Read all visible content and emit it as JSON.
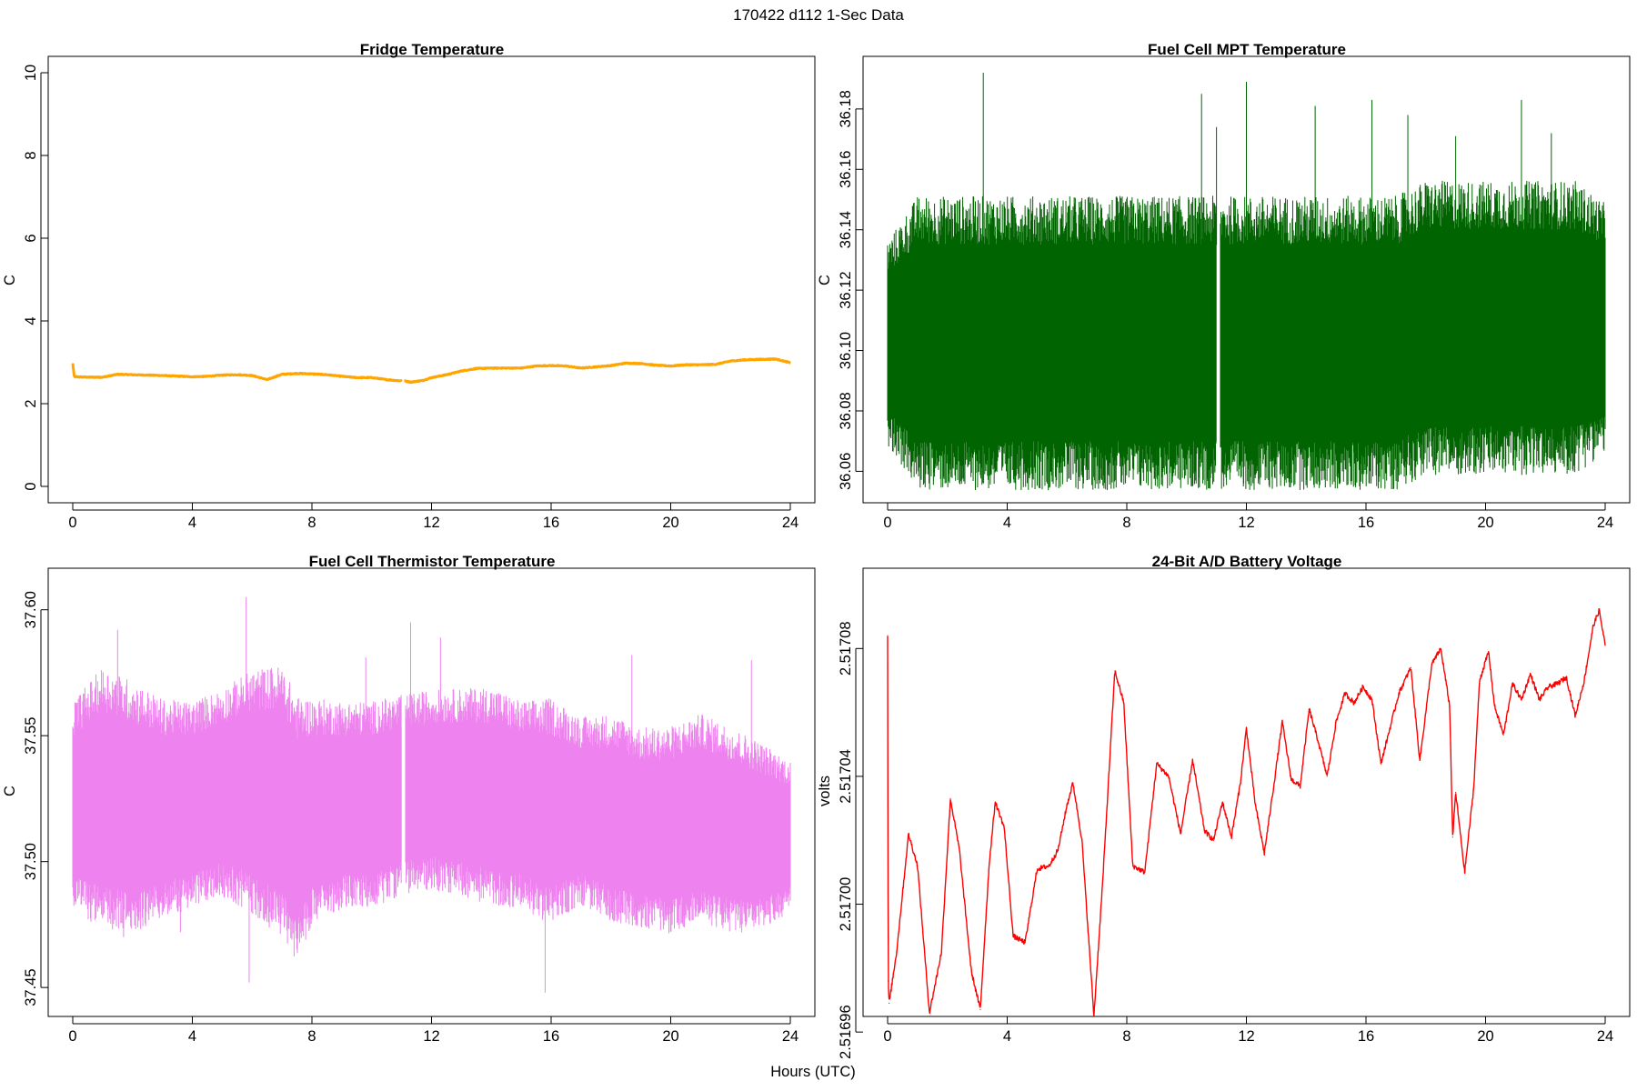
{
  "figure": {
    "title": "170422   d112   1-Sec Data",
    "shared_xlabel": "Hours (UTC)"
  },
  "chart_data": [
    {
      "type": "line",
      "title": "Fridge Temperature",
      "xlabel": "",
      "ylabel": "C",
      "xlim": [
        0,
        24
      ],
      "ylim": [
        0,
        10
      ],
      "xticks": [
        0,
        4,
        8,
        12,
        16,
        20,
        24
      ],
      "yticks": [
        0,
        2,
        4,
        6,
        8,
        10
      ],
      "ytick_labels": [
        "0",
        "2",
        "4",
        "6",
        "8",
        "10"
      ],
      "color": "#ffa500",
      "render": "smooth",
      "gap": [
        11.0,
        11.1
      ],
      "x": [
        0,
        0.05,
        0.5,
        1,
        1.5,
        2,
        3,
        4,
        4.5,
        5,
        5.5,
        6,
        6.5,
        7,
        7.5,
        8,
        8.5,
        9,
        9.5,
        10,
        10.5,
        11,
        11.1,
        11.3,
        11.7,
        12,
        12.5,
        13,
        13.5,
        14,
        15,
        15.5,
        16,
        16.5,
        17,
        17.5,
        18,
        18.5,
        19,
        19.5,
        20,
        20.5,
        21,
        21.5,
        22,
        22.5,
        23,
        23.5,
        24
      ],
      "y": [
        2.97,
        2.65,
        2.64,
        2.64,
        2.71,
        2.7,
        2.68,
        2.65,
        2.66,
        2.69,
        2.7,
        2.68,
        2.58,
        2.71,
        2.73,
        2.72,
        2.7,
        2.66,
        2.63,
        2.63,
        2.58,
        2.55,
        2.55,
        2.52,
        2.56,
        2.63,
        2.7,
        2.79,
        2.85,
        2.86,
        2.86,
        2.91,
        2.92,
        2.91,
        2.86,
        2.89,
        2.92,
        2.98,
        2.97,
        2.93,
        2.91,
        2.94,
        2.94,
        2.95,
        3.03,
        3.06,
        3.07,
        3.08,
        2.99
      ]
    },
    {
      "type": "line",
      "title": "Fuel Cell MPT Temperature",
      "xlabel": "",
      "ylabel": "C",
      "xlim": [
        0,
        24
      ],
      "ylim": [
        36.055,
        36.192
      ],
      "xticks": [
        0,
        4,
        8,
        12,
        16,
        20,
        24
      ],
      "yticks": [
        36.06,
        36.08,
        36.1,
        36.12,
        36.14,
        36.16,
        36.18
      ],
      "ytick_labels": [
        "36.06",
        "36.08",
        "36.10",
        "36.12",
        "36.14",
        "36.16",
        "36.18"
      ],
      "color": "#006400",
      "render": "noise-band",
      "gap": [
        11.0,
        11.12
      ],
      "x": [
        0,
        1,
        2,
        3,
        4,
        5,
        6,
        7,
        8,
        9,
        10,
        11,
        12,
        13,
        14,
        15,
        16,
        17,
        18,
        19,
        20,
        21,
        22,
        23,
        24
      ],
      "low": [
        36.08,
        36.07,
        36.07,
        36.07,
        36.07,
        36.07,
        36.07,
        36.07,
        36.07,
        36.07,
        36.07,
        36.07,
        36.07,
        36.07,
        36.07,
        36.07,
        36.07,
        36.07,
        36.075,
        36.075,
        36.075,
        36.075,
        36.075,
        36.075,
        36.08
      ],
      "high": [
        36.125,
        36.135,
        36.135,
        36.135,
        36.135,
        36.135,
        36.135,
        36.135,
        36.135,
        36.135,
        36.135,
        36.135,
        36.135,
        36.135,
        36.135,
        36.135,
        36.135,
        36.135,
        36.14,
        36.14,
        36.14,
        36.14,
        36.14,
        36.14,
        36.135
      ],
      "spikes_high": [
        [
          3.2,
          36.192
        ],
        [
          10.5,
          36.185
        ],
        [
          12.0,
          36.189
        ],
        [
          14.3,
          36.181
        ],
        [
          16.2,
          36.183
        ],
        [
          21.2,
          36.183
        ],
        [
          11.0,
          36.174
        ],
        [
          17.4,
          36.178
        ],
        [
          19.0,
          36.171
        ],
        [
          22.2,
          36.172
        ]
      ],
      "spikes_low": [
        [
          7.1,
          36.056
        ],
        [
          11.9,
          36.055
        ],
        [
          12.4,
          36.056
        ],
        [
          14.8,
          36.057
        ],
        [
          9.0,
          36.058
        ],
        [
          1.4,
          36.059
        ]
      ]
    },
    {
      "type": "line",
      "title": "Fuel Cell Thermistor Temperature",
      "xlabel": "",
      "ylabel": "C",
      "xlim": [
        0,
        24
      ],
      "ylim": [
        37.445,
        37.61
      ],
      "xticks": [
        0,
        4,
        8,
        12,
        16,
        20,
        24
      ],
      "yticks": [
        37.45,
        37.5,
        37.55,
        37.6
      ],
      "ytick_labels": [
        "37.45",
        "37.50",
        "37.55",
        "37.60"
      ],
      "color": "#ee82ee",
      "render": "noise-band",
      "gap": [
        11.0,
        11.12
      ],
      "x": [
        0,
        1,
        2,
        3,
        4,
        5,
        6,
        7,
        7.5,
        8,
        9,
        10,
        11,
        12,
        13,
        14,
        15,
        16,
        17,
        18,
        19,
        20,
        21,
        22,
        23,
        24
      ],
      "low": [
        37.495,
        37.49,
        37.488,
        37.492,
        37.495,
        37.5,
        37.495,
        37.488,
        37.478,
        37.49,
        37.495,
        37.495,
        37.5,
        37.502,
        37.5,
        37.497,
        37.495,
        37.49,
        37.495,
        37.49,
        37.487,
        37.485,
        37.49,
        37.485,
        37.485,
        37.49
      ],
      "high": [
        37.55,
        37.56,
        37.555,
        37.55,
        37.55,
        37.555,
        37.56,
        37.56,
        37.548,
        37.55,
        37.55,
        37.55,
        37.553,
        37.555,
        37.555,
        37.555,
        37.55,
        37.55,
        37.545,
        37.545,
        37.54,
        37.54,
        37.545,
        37.54,
        37.535,
        37.53
      ],
      "spikes_high": [
        [
          5.8,
          37.605
        ],
        [
          1.5,
          37.592
        ],
        [
          11.3,
          37.595
        ],
        [
          12.3,
          37.589
        ],
        [
          9.8,
          37.581
        ],
        [
          18.7,
          37.582
        ],
        [
          22.7,
          37.58
        ]
      ],
      "spikes_low": [
        [
          5.9,
          37.452
        ],
        [
          15.8,
          37.448
        ],
        [
          7.5,
          37.467
        ],
        [
          1.7,
          37.47
        ],
        [
          3.6,
          37.472
        ]
      ]
    },
    {
      "type": "line",
      "title": "24-Bit A/D Battery Voltage",
      "xlabel": "",
      "ylabel": "volts",
      "xlim": [
        0,
        24
      ],
      "ylim": [
        2.51697,
        2.5171
      ],
      "xticks": [
        0,
        4,
        8,
        12,
        16,
        20,
        24
      ],
      "yticks": [
        2.51696,
        2.517,
        2.51704,
        2.51708
      ],
      "ytick_labels": [
        "2.51696",
        "2.51700",
        "2.51704",
        "2.51708"
      ],
      "color": "#ff0000",
      "render": "smooth",
      "x": [
        0,
        0.02,
        0.05,
        0.3,
        0.7,
        1.0,
        1.4,
        1.8,
        2.1,
        2.4,
        2.8,
        3.1,
        3.4,
        3.6,
        3.9,
        4.2,
        4.6,
        5.0,
        5.4,
        5.7,
        6.0,
        6.2,
        6.5,
        6.9,
        7.2,
        7.6,
        7.9,
        8.2,
        8.6,
        9.0,
        9.4,
        9.8,
        10.2,
        10.6,
        10.9,
        11.2,
        11.5,
        11.8,
        12.0,
        12.3,
        12.6,
        12.9,
        13.2,
        13.5,
        13.8,
        14.1,
        14.4,
        14.7,
        15.0,
        15.3,
        15.6,
        15.9,
        16.2,
        16.5,
        16.8,
        17.1,
        17.5,
        17.8,
        18.2,
        18.5,
        18.8,
        18.9,
        19.0,
        19.3,
        19.6,
        19.8,
        20.1,
        20.3,
        20.6,
        20.9,
        21.2,
        21.5,
        21.8,
        22.1,
        22.4,
        22.7,
        23.0,
        23.3,
        23.6,
        23.8,
        24.0
      ],
      "y": [
        2.517084,
        2.516976,
        2.516969,
        2.516985,
        2.517022,
        2.517012,
        2.516966,
        2.516985,
        2.517033,
        2.517017,
        2.516979,
        2.516967,
        2.517013,
        2.517032,
        2.517024,
        2.51699,
        2.516988,
        2.517011,
        2.517012,
        2.517017,
        2.517031,
        2.517038,
        2.51702,
        2.516965,
        2.517008,
        2.517073,
        2.517063,
        2.517012,
        2.51701,
        2.517044,
        2.51704,
        2.517022,
        2.517045,
        2.517023,
        2.51702,
        2.517032,
        2.517021,
        2.517038,
        2.517055,
        2.517031,
        2.517016,
        2.517036,
        2.517057,
        2.517039,
        2.517037,
        2.517061,
        2.517051,
        2.51704,
        2.517057,
        2.517066,
        2.517063,
        2.517068,
        2.517064,
        2.517044,
        2.517055,
        2.517066,
        2.517074,
        2.517045,
        2.517075,
        2.51708,
        2.517062,
        2.517021,
        2.517035,
        2.51701,
        2.517036,
        2.51707,
        2.517079,
        2.517062,
        2.517053,
        2.517069,
        2.517064,
        2.517072,
        2.517064,
        2.517068,
        2.517069,
        2.517071,
        2.517059,
        2.51707,
        2.517087,
        2.517092,
        2.517081
      ]
    }
  ]
}
